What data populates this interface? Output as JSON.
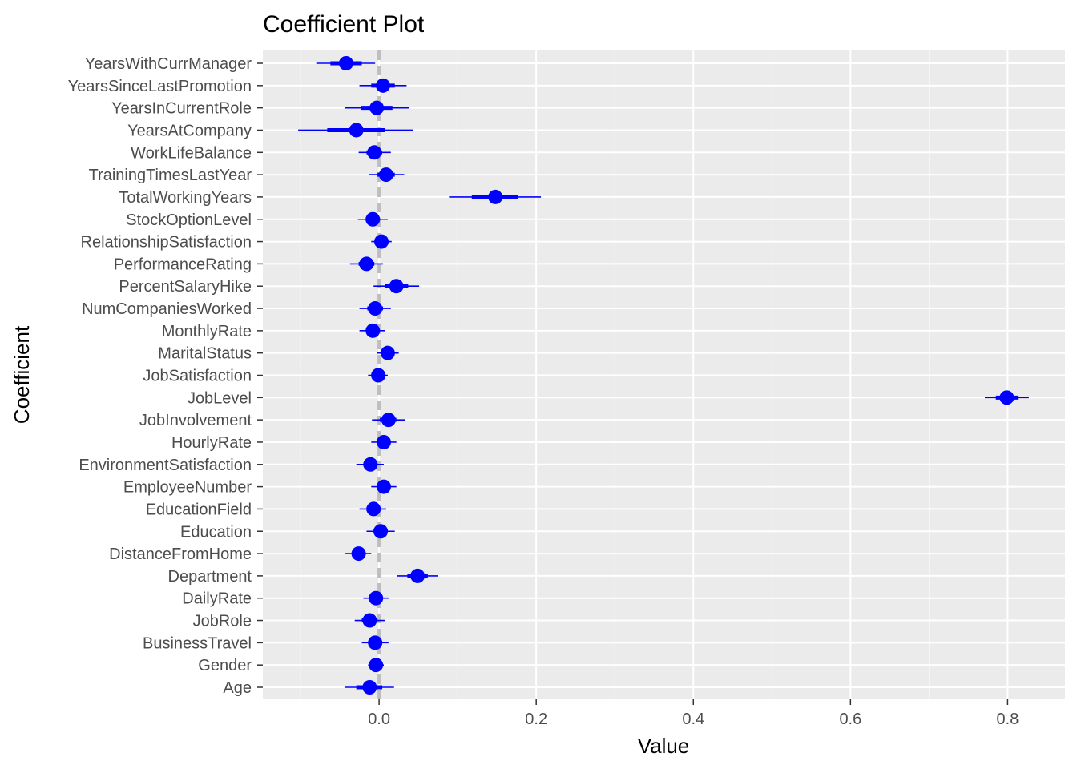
{
  "chart_data": {
    "type": "coefficient-plot",
    "title": "Coefficient Plot",
    "xlabel": "Value",
    "ylabel": "Coefficient",
    "xlim": [
      -0.148,
      0.873
    ],
    "x_ticks": [
      0.0,
      0.2,
      0.4,
      0.6,
      0.8
    ],
    "x_tick_labels": [
      "0.0",
      "0.2",
      "0.4",
      "0.6",
      "0.8"
    ],
    "reference_line": 0,
    "grid": true,
    "colors": {
      "panel_bg": "#ebebeb",
      "grid_major": "#ffffff",
      "grid_minor": "#f5f5f5",
      "point": "#0000ff",
      "reference_line": "#bebebe"
    },
    "coefficients": [
      {
        "name": "YearsWithCurrManager",
        "value": -0.042,
        "inner": [
          -0.062,
          -0.022
        ],
        "outer": [
          -0.08,
          -0.005
        ]
      },
      {
        "name": "YearsSinceLastPromotion",
        "value": 0.005,
        "inner": [
          -0.01,
          0.02
        ],
        "outer": [
          -0.025,
          0.035
        ]
      },
      {
        "name": "YearsInCurrentRole",
        "value": -0.003,
        "inner": [
          -0.023,
          0.017
        ],
        "outer": [
          -0.044,
          0.038
        ]
      },
      {
        "name": "YearsAtCompany",
        "value": -0.029,
        "inner": [
          -0.066,
          0.007
        ],
        "outer": [
          -0.103,
          0.043
        ]
      },
      {
        "name": "WorkLifeBalance",
        "value": -0.006,
        "inner": [
          -0.016,
          0.004
        ],
        "outer": [
          -0.026,
          0.015
        ]
      },
      {
        "name": "TrainingTimesLastYear",
        "value": 0.009,
        "inner": [
          -0.002,
          0.02
        ],
        "outer": [
          -0.013,
          0.032
        ]
      },
      {
        "name": "TotalWorkingYears",
        "value": 0.148,
        "inner": [
          0.118,
          0.177
        ],
        "outer": [
          0.089,
          0.206
        ]
      },
      {
        "name": "StockOptionLevel",
        "value": -0.008,
        "inner": [
          -0.017,
          0.001
        ],
        "outer": [
          -0.027,
          0.011
        ]
      },
      {
        "name": "RelationshipSatisfaction",
        "value": 0.003,
        "inner": [
          -0.004,
          0.01
        ],
        "outer": [
          -0.01,
          0.016
        ]
      },
      {
        "name": "PerformanceRating",
        "value": -0.016,
        "inner": [
          -0.026,
          -0.006
        ],
        "outer": [
          -0.037,
          0.005
        ]
      },
      {
        "name": "PercentSalaryHike",
        "value": 0.022,
        "inner": [
          0.008,
          0.037
        ],
        "outer": [
          -0.007,
          0.051
        ]
      },
      {
        "name": "NumCompaniesWorked",
        "value": -0.005,
        "inner": [
          -0.015,
          0.005
        ],
        "outer": [
          -0.025,
          0.015
        ]
      },
      {
        "name": "MonthlyRate",
        "value": -0.008,
        "inner": [
          -0.016,
          0.0
        ],
        "outer": [
          -0.025,
          0.008
        ]
      },
      {
        "name": "MaritalStatus",
        "value": 0.011,
        "inner": [
          0.004,
          0.018
        ],
        "outer": [
          -0.003,
          0.025
        ]
      },
      {
        "name": "JobSatisfaction",
        "value": -0.001,
        "inner": [
          -0.007,
          0.005
        ],
        "outer": [
          -0.014,
          0.011
        ]
      },
      {
        "name": "JobLevel",
        "value": 0.799,
        "inner": [
          0.785,
          0.813
        ],
        "outer": [
          0.771,
          0.827
        ]
      },
      {
        "name": "JobInvolvement",
        "value": 0.012,
        "inner": [
          0.001,
          0.022
        ],
        "outer": [
          -0.009,
          0.033
        ]
      },
      {
        "name": "HourlyRate",
        "value": 0.006,
        "inner": [
          -0.002,
          0.014
        ],
        "outer": [
          -0.01,
          0.022
        ]
      },
      {
        "name": "EnvironmentSatisfaction",
        "value": -0.011,
        "inner": [
          -0.02,
          -0.002
        ],
        "outer": [
          -0.029,
          0.006
        ]
      },
      {
        "name": "EmployeeNumber",
        "value": 0.006,
        "inner": [
          -0.002,
          0.014
        ],
        "outer": [
          -0.01,
          0.022
        ]
      },
      {
        "name": "EducationField",
        "value": -0.007,
        "inner": [
          -0.016,
          0.001
        ],
        "outer": [
          -0.025,
          0.009
        ]
      },
      {
        "name": "Education",
        "value": 0.002,
        "inner": [
          -0.007,
          0.011
        ],
        "outer": [
          -0.016,
          0.02
        ]
      },
      {
        "name": "DistanceFromHome",
        "value": -0.026,
        "inner": [
          -0.034,
          -0.018
        ],
        "outer": [
          -0.043,
          -0.01
        ]
      },
      {
        "name": "Department",
        "value": 0.049,
        "inner": [
          0.036,
          0.062
        ],
        "outer": [
          0.023,
          0.075
        ]
      },
      {
        "name": "DailyRate",
        "value": -0.004,
        "inner": [
          -0.012,
          0.004
        ],
        "outer": [
          -0.02,
          0.012
        ]
      },
      {
        "name": "JobRole",
        "value": -0.012,
        "inner": [
          -0.022,
          -0.002
        ],
        "outer": [
          -0.031,
          0.007
        ]
      },
      {
        "name": "BusinessTravel",
        "value": -0.005,
        "inner": [
          -0.013,
          0.003
        ],
        "outer": [
          -0.022,
          0.012
        ]
      },
      {
        "name": "Gender",
        "value": -0.004,
        "inner": [
          -0.009,
          0.001
        ],
        "outer": [
          -0.014,
          0.006
        ]
      },
      {
        "name": "Age",
        "value": -0.012,
        "inner": [
          -0.029,
          0.004
        ],
        "outer": [
          -0.044,
          0.019
        ]
      }
    ]
  }
}
